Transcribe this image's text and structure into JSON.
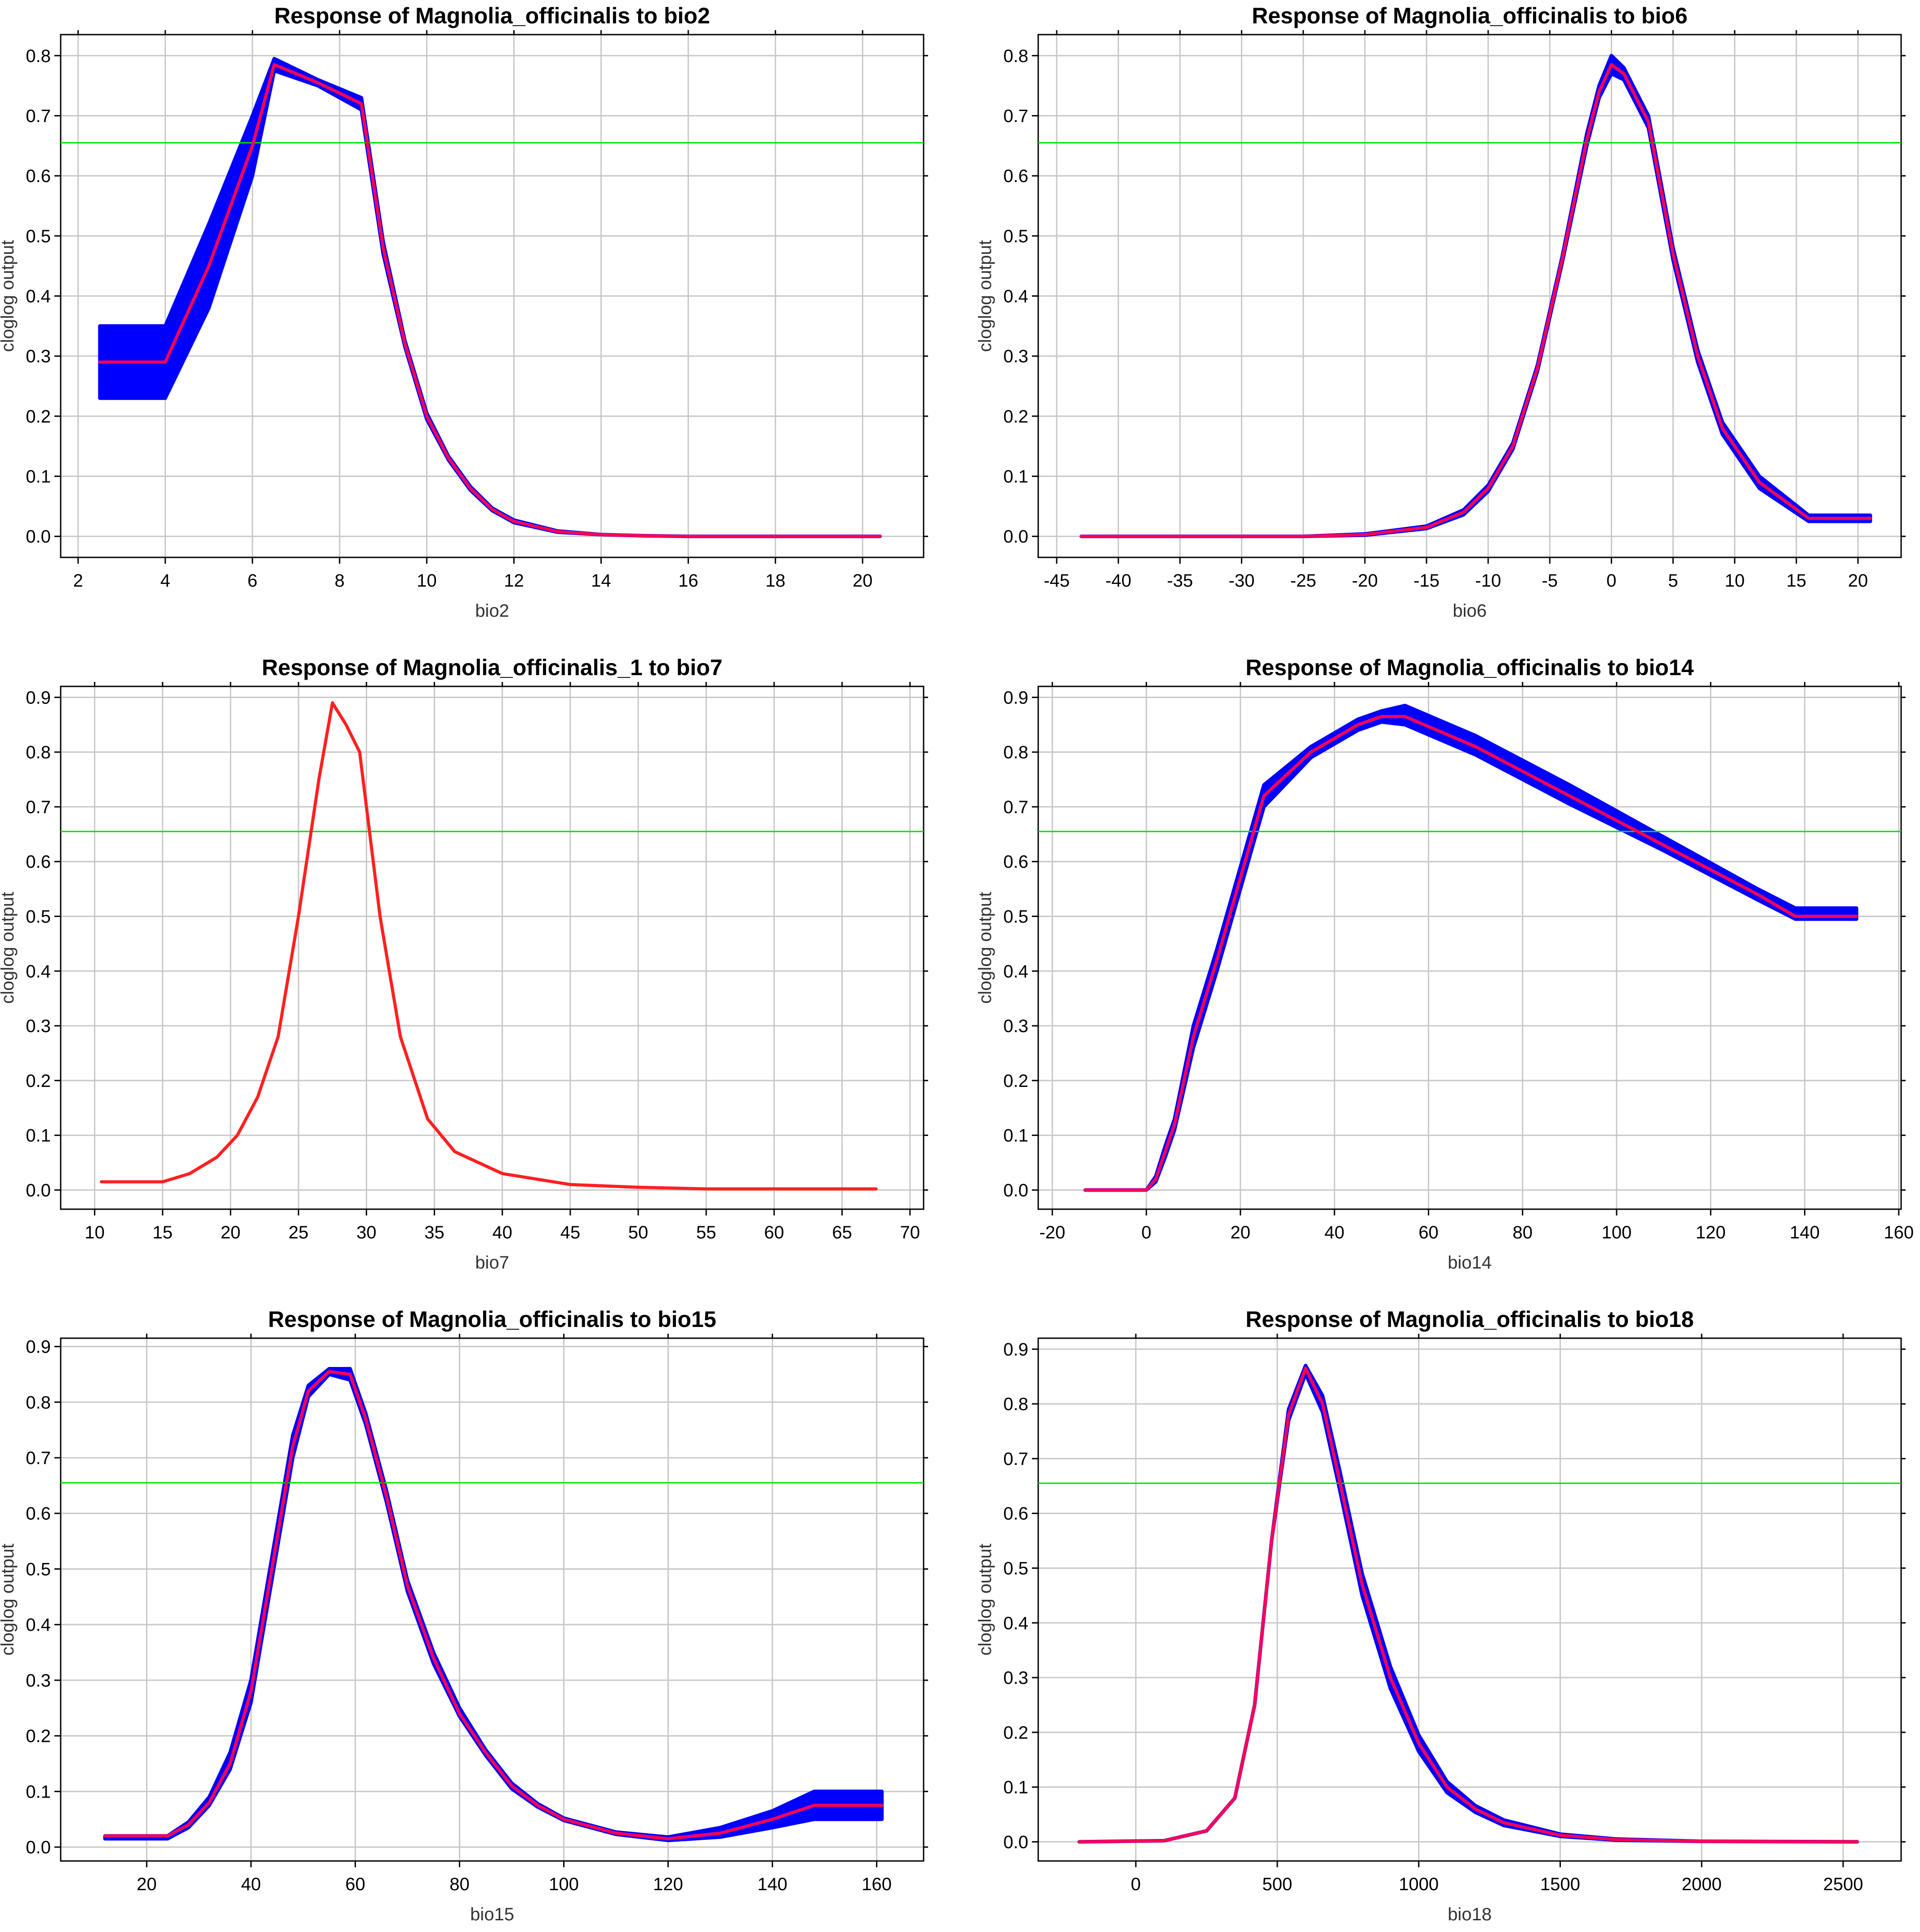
{
  "figure": {
    "colors": {
      "grid": "#c8c8c8",
      "band": "#0000ff",
      "mean": "#ff0055",
      "threshold": "#00e000",
      "single": "#ff2020",
      "axis": "#000000"
    }
  },
  "chart_data": [
    {
      "type": "line",
      "title": "Response of Magnolia_officinalis to bio2",
      "xlabel": "bio2",
      "ylabel": "cloglog output",
      "xlim": [
        1.6,
        21.4
      ],
      "ylim": [
        -0.035,
        0.835
      ],
      "xticks": [
        2,
        4,
        6,
        8,
        10,
        12,
        14,
        16,
        18,
        20
      ],
      "yticks": [
        0.0,
        0.1,
        0.2,
        0.3,
        0.4,
        0.5,
        0.6,
        0.7,
        0.8
      ],
      "threshold": 0.655,
      "show_band": true,
      "mean_color": "mean",
      "x": [
        2.5,
        4.0,
        5.0,
        6.0,
        6.5,
        7.5,
        8.5,
        9.0,
        9.5,
        10.0,
        10.5,
        11.0,
        11.5,
        12.0,
        13.0,
        14.0,
        15.0,
        16.0,
        18.0,
        20.4
      ],
      "y": [
        0.29,
        0.29,
        0.45,
        0.65,
        0.785,
        0.755,
        0.72,
        0.48,
        0.32,
        0.2,
        0.13,
        0.08,
        0.045,
        0.025,
        0.008,
        0.003,
        0.001,
        0.0,
        0.0,
        0.0
      ],
      "upper": [
        0.35,
        0.35,
        0.52,
        0.7,
        0.795,
        0.76,
        0.73,
        0.49,
        0.325,
        0.205,
        0.133,
        0.083,
        0.047,
        0.027,
        0.009,
        0.003,
        0.001,
        0.0,
        0.0,
        0.0
      ],
      "lower": [
        0.23,
        0.23,
        0.38,
        0.6,
        0.775,
        0.75,
        0.71,
        0.47,
        0.315,
        0.195,
        0.127,
        0.077,
        0.043,
        0.023,
        0.007,
        0.003,
        0.001,
        0.0,
        0.0,
        0.0
      ]
    },
    {
      "type": "line",
      "title": "Response of Magnolia_officinalis to bio6",
      "xlabel": "bio6",
      "ylabel": "cloglog output",
      "xlim": [
        -46.5,
        23.5
      ],
      "ylim": [
        -0.035,
        0.835
      ],
      "xticks": [
        -45,
        -40,
        -35,
        -30,
        -25,
        -20,
        -15,
        -10,
        -5,
        0,
        5,
        10,
        15,
        20
      ],
      "yticks": [
        0.0,
        0.1,
        0.2,
        0.3,
        0.4,
        0.5,
        0.6,
        0.7,
        0.8
      ],
      "threshold": 0.655,
      "show_band": true,
      "mean_color": "mean",
      "x": [
        -43,
        -30,
        -25,
        -20,
        -15,
        -12,
        -10,
        -8,
        -6,
        -4,
        -2,
        -1,
        0,
        1,
        3,
        5,
        7,
        9,
        12,
        16,
        21
      ],
      "y": [
        0.0,
        0.0,
        0.0,
        0.003,
        0.015,
        0.04,
        0.08,
        0.15,
        0.28,
        0.46,
        0.66,
        0.74,
        0.785,
        0.77,
        0.69,
        0.47,
        0.3,
        0.18,
        0.09,
        0.03,
        0.03
      ],
      "upper": [
        0.0,
        0.0,
        0.0,
        0.004,
        0.017,
        0.044,
        0.085,
        0.155,
        0.285,
        0.465,
        0.67,
        0.75,
        0.8,
        0.78,
        0.7,
        0.48,
        0.31,
        0.19,
        0.1,
        0.035,
        0.035
      ],
      "lower": [
        0.0,
        0.0,
        0.0,
        0.002,
        0.013,
        0.036,
        0.075,
        0.145,
        0.275,
        0.455,
        0.65,
        0.73,
        0.77,
        0.76,
        0.68,
        0.46,
        0.29,
        0.17,
        0.08,
        0.025,
        0.025
      ]
    },
    {
      "type": "line",
      "title": "Response of Magnolia_officinalis_1 to bio7",
      "xlabel": "bio7",
      "ylabel": "cloglog output",
      "xlim": [
        7.5,
        71.0
      ],
      "ylim": [
        -0.035,
        0.92
      ],
      "xticks": [
        10,
        15,
        20,
        25,
        30,
        35,
        40,
        45,
        50,
        55,
        60,
        65,
        70
      ],
      "yticks": [
        0.0,
        0.1,
        0.2,
        0.3,
        0.4,
        0.5,
        0.6,
        0.7,
        0.8,
        0.9
      ],
      "threshold": 0.655,
      "show_band": false,
      "mean_color": "single",
      "x": [
        10.5,
        15.0,
        17.0,
        19.0,
        20.5,
        22.0,
        23.5,
        25.0,
        26.5,
        27.5,
        28.5,
        29.5,
        31.0,
        32.5,
        34.5,
        36.5,
        40.0,
        45.0,
        50.0,
        55.0,
        67.5
      ],
      "y": [
        0.015,
        0.015,
        0.03,
        0.06,
        0.1,
        0.17,
        0.28,
        0.5,
        0.75,
        0.89,
        0.85,
        0.8,
        0.5,
        0.28,
        0.13,
        0.07,
        0.03,
        0.01,
        0.005,
        0.002,
        0.002
      ],
      "upper": [],
      "lower": []
    },
    {
      "type": "line",
      "title": "Response of Magnolia_officinalis to bio14",
      "xlabel": "bio14",
      "ylabel": "cloglog output",
      "xlim": [
        -23.0,
        160.5
      ],
      "ylim": [
        -0.035,
        0.92
      ],
      "xticks": [
        -20,
        0,
        20,
        40,
        60,
        80,
        100,
        120,
        140,
        160
      ],
      "yticks": [
        0.0,
        0.1,
        0.2,
        0.3,
        0.4,
        0.5,
        0.6,
        0.7,
        0.8,
        0.9
      ],
      "threshold": 0.655,
      "show_band": true,
      "mean_color": "mean",
      "x": [
        -13,
        0,
        2,
        4,
        6,
        10,
        15,
        20,
        25,
        35,
        45,
        50,
        55,
        70,
        90,
        110,
        130,
        138,
        151
      ],
      "y": [
        0.0,
        0.0,
        0.02,
        0.07,
        0.12,
        0.28,
        0.42,
        0.57,
        0.72,
        0.8,
        0.85,
        0.865,
        0.865,
        0.81,
        0.72,
        0.63,
        0.54,
        0.5,
        0.5
      ],
      "upper": [
        0.0,
        0.0,
        0.025,
        0.08,
        0.13,
        0.3,
        0.44,
        0.59,
        0.74,
        0.81,
        0.86,
        0.875,
        0.885,
        0.83,
        0.74,
        0.645,
        0.55,
        0.515,
        0.515
      ],
      "lower": [
        0.0,
        0.0,
        0.015,
        0.06,
        0.11,
        0.26,
        0.4,
        0.55,
        0.7,
        0.79,
        0.84,
        0.855,
        0.85,
        0.795,
        0.705,
        0.62,
        0.53,
        0.495,
        0.495
      ]
    },
    {
      "type": "line",
      "title": "Response of Magnolia_officinalis to bio15",
      "xlabel": "bio15",
      "ylabel": "cloglog output",
      "xlim": [
        3.5,
        169.0
      ],
      "ylim": [
        -0.025,
        0.915
      ],
      "xticks": [
        20,
        40,
        60,
        80,
        100,
        120,
        140,
        160
      ],
      "yticks": [
        0.0,
        0.1,
        0.2,
        0.3,
        0.4,
        0.5,
        0.6,
        0.7,
        0.8,
        0.9
      ],
      "threshold": 0.655,
      "show_band": true,
      "mean_color": "mean",
      "x": [
        12,
        24,
        28,
        32,
        36,
        40,
        44,
        48,
        51,
        55,
        59,
        62,
        66,
        70,
        75,
        80,
        85,
        90,
        95,
        100,
        110,
        120,
        130,
        140,
        148,
        161
      ],
      "y": [
        0.02,
        0.02,
        0.04,
        0.08,
        0.15,
        0.28,
        0.5,
        0.72,
        0.82,
        0.855,
        0.85,
        0.77,
        0.63,
        0.47,
        0.34,
        0.24,
        0.17,
        0.11,
        0.075,
        0.05,
        0.025,
        0.015,
        0.025,
        0.05,
        0.075,
        0.075
      ],
      "upper": [
        0.02,
        0.02,
        0.045,
        0.09,
        0.17,
        0.3,
        0.52,
        0.74,
        0.83,
        0.86,
        0.86,
        0.78,
        0.64,
        0.48,
        0.35,
        0.25,
        0.175,
        0.115,
        0.078,
        0.052,
        0.027,
        0.018,
        0.035,
        0.065,
        0.1,
        0.1
      ],
      "lower": [
        0.015,
        0.015,
        0.035,
        0.075,
        0.14,
        0.26,
        0.48,
        0.7,
        0.81,
        0.85,
        0.84,
        0.76,
        0.62,
        0.46,
        0.33,
        0.235,
        0.165,
        0.105,
        0.072,
        0.048,
        0.023,
        0.012,
        0.018,
        0.035,
        0.05,
        0.05
      ]
    },
    {
      "type": "line",
      "title": "Response of Magnolia_officinalis to bio18",
      "xlabel": "bio18",
      "ylabel": "cloglog output",
      "xlim": [
        -345.0,
        2705.0
      ],
      "ylim": [
        -0.035,
        0.92
      ],
      "xticks": [
        0,
        500,
        1000,
        1500,
        2000,
        2500
      ],
      "yticks": [
        0.0,
        0.1,
        0.2,
        0.3,
        0.4,
        0.5,
        0.6,
        0.7,
        0.8,
        0.9
      ],
      "threshold": 0.655,
      "show_band": true,
      "mean_color": "mean",
      "x": [
        -200,
        100,
        250,
        350,
        420,
        480,
        540,
        600,
        660,
        720,
        800,
        900,
        1000,
        1100,
        1200,
        1300,
        1500,
        1700,
        2000,
        2550
      ],
      "y": [
        0.0,
        0.002,
        0.02,
        0.08,
        0.25,
        0.55,
        0.78,
        0.865,
        0.8,
        0.66,
        0.47,
        0.3,
        0.18,
        0.1,
        0.06,
        0.035,
        0.012,
        0.004,
        0.001,
        0.0
      ],
      "upper": [
        0.0,
        0.002,
        0.02,
        0.08,
        0.25,
        0.55,
        0.79,
        0.87,
        0.815,
        0.68,
        0.49,
        0.32,
        0.195,
        0.11,
        0.066,
        0.04,
        0.014,
        0.005,
        0.001,
        0.0
      ],
      "lower": [
        0.0,
        0.002,
        0.02,
        0.08,
        0.25,
        0.55,
        0.77,
        0.855,
        0.785,
        0.645,
        0.45,
        0.28,
        0.165,
        0.09,
        0.054,
        0.03,
        0.01,
        0.003,
        0.001,
        0.0
      ]
    }
  ]
}
